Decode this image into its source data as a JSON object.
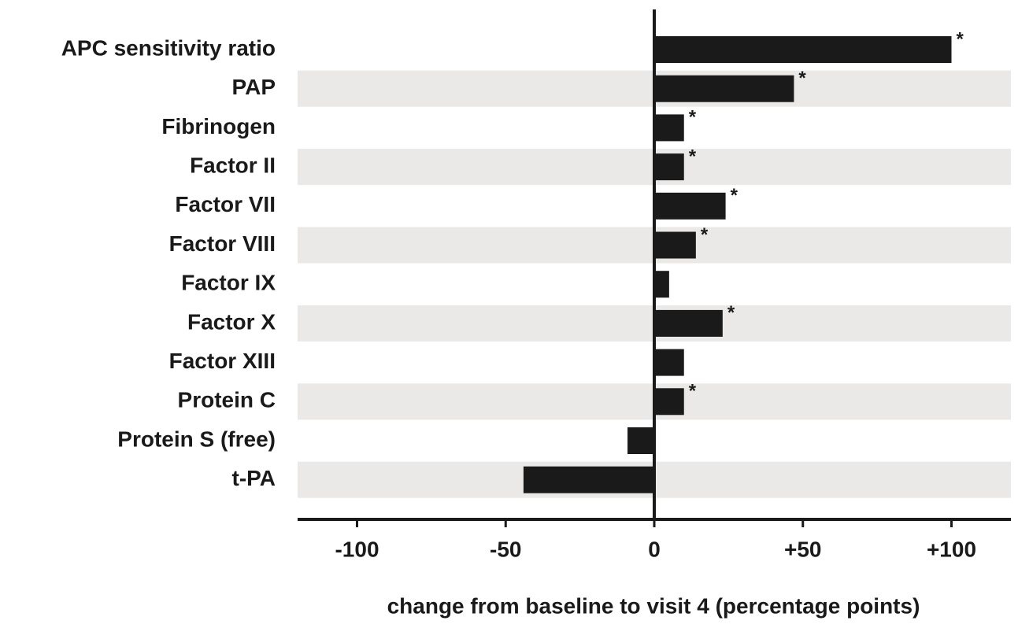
{
  "chart_data": {
    "type": "hbar",
    "categories": [
      "APC sensitivity ratio",
      "PAP",
      "Fibrinogen",
      "Factor II",
      "Factor VII",
      "Factor VIII",
      "Factor IX",
      "Factor X",
      "Factor XIII",
      "Protein C",
      "Protein S (free)",
      "t-PA"
    ],
    "values": [
      100,
      47,
      10,
      10,
      24,
      14,
      5,
      23,
      10,
      10,
      -9,
      -44
    ],
    "significance": [
      "*",
      "*",
      "*",
      "*",
      "*",
      "*",
      null,
      "*",
      null,
      "*",
      null,
      null
    ],
    "color": "#1a1a1a",
    "xlim": [
      -120,
      120
    ],
    "xticks": [
      -100,
      -50,
      0,
      {
        "value": 50,
        "label": "+50"
      },
      {
        "value": 100,
        "label": "+100"
      }
    ],
    "xlabel": "change from baseline to visit 4 (percentage points)",
    "row_stripes": true
  }
}
